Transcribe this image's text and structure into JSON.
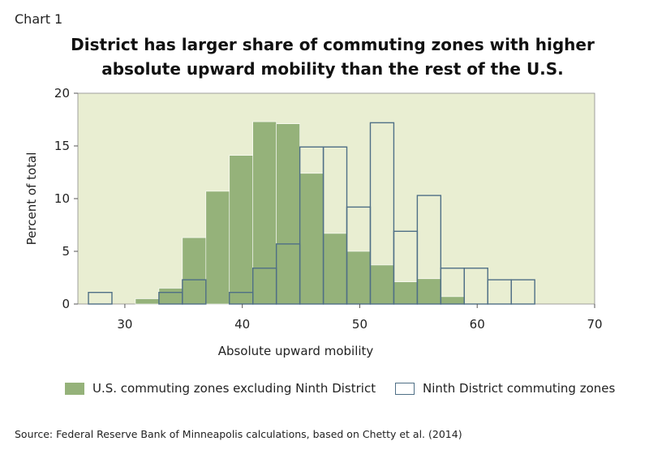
{
  "chart_label": "Chart 1",
  "title_lines": [
    "District has larger share of commuting zones with higher",
    "absolute upward mobility than the rest of the U.S."
  ],
  "source": "Source: Federal Reserve Bank of Minneapolis calculations, based on Chetty et al. (2014)",
  "colors": {
    "plot_background": "#e9eed2",
    "us_fill": "#95b27a",
    "ninth_outline": "#4f6f86"
  },
  "chart_data": {
    "type": "bar",
    "subtype": "overlaid histogram",
    "xlabel": "Absolute upward mobility",
    "ylabel": "Percent of total",
    "xlim": [
      26,
      70
    ],
    "ylim": [
      0,
      20
    ],
    "xticks": [
      30,
      40,
      50,
      60,
      70
    ],
    "yticks": [
      0,
      5,
      10,
      15,
      20
    ],
    "grid": false,
    "legend_position": "bottom",
    "bin_edges": [
      26.9,
      28.9,
      30.9,
      32.9,
      34.9,
      36.9,
      38.9,
      40.9,
      42.9,
      44.9,
      46.9,
      48.9,
      50.9,
      52.9,
      54.9,
      56.9,
      58.9,
      60.9,
      62.9,
      64.9
    ],
    "series": [
      {
        "name": "U.S. commuting zones excluding Ninth District",
        "style": "filled",
        "values": [
          0,
          0,
          0.5,
          1.5,
          6.3,
          10.7,
          14.1,
          17.3,
          17.1,
          12.4,
          6.7,
          5.0,
          3.7,
          2.1,
          2.4,
          0.7,
          0,
          0,
          0
        ]
      },
      {
        "name": "Ninth District commuting zones",
        "style": "outline",
        "values": [
          1.1,
          0,
          0,
          1.1,
          2.3,
          0,
          1.1,
          3.4,
          5.7,
          14.9,
          14.9,
          9.2,
          17.2,
          6.9,
          10.3,
          3.4,
          3.4,
          2.3,
          2.3
        ]
      }
    ]
  }
}
